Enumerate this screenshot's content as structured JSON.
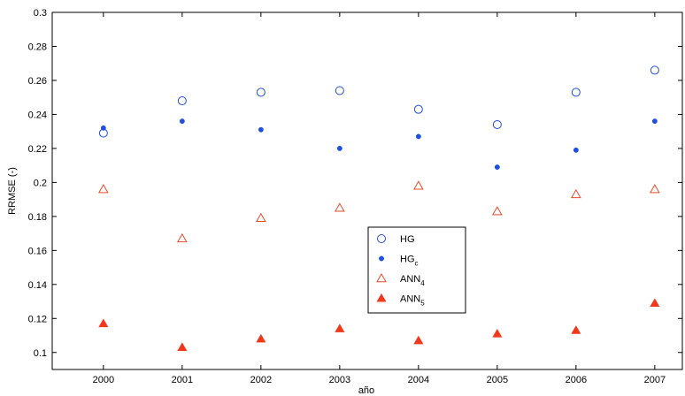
{
  "chart_data": {
    "type": "scatter",
    "xlabel": "año",
    "ylabel": "RRMSE (-)",
    "xlim": [
      1999.35,
      2007.35
    ],
    "ylim": [
      0.09,
      0.3
    ],
    "xticks": [
      "2000",
      "2001",
      "2002",
      "2003",
      "2004",
      "2005",
      "2006",
      "2007"
    ],
    "yticks": [
      "0.1",
      "0.12",
      "0.14",
      "0.16",
      "0.18",
      "0.2",
      "0.22",
      "0.24",
      "0.26",
      "0.28",
      "0.3"
    ],
    "x": [
      2000,
      2001,
      2002,
      2003,
      2004,
      2005,
      2006,
      2007
    ],
    "grid": false,
    "legend_position": "center-right",
    "series": [
      {
        "name": "HG",
        "sub": "",
        "marker": "open-circle",
        "color": "#1f4fe0",
        "values": [
          0.229,
          0.248,
          0.253,
          0.254,
          0.243,
          0.234,
          0.253,
          0.266
        ]
      },
      {
        "name": "HG",
        "sub": "c",
        "marker": "filled-dot",
        "color": "#1f4fe0",
        "values": [
          0.232,
          0.236,
          0.231,
          0.22,
          0.227,
          0.209,
          0.219,
          0.236
        ]
      },
      {
        "name": "ANN",
        "sub": "4",
        "marker": "open-triangle",
        "color": "#ea4a2a",
        "values": [
          0.196,
          0.167,
          0.179,
          0.185,
          0.198,
          0.183,
          0.193,
          0.196
        ]
      },
      {
        "name": "ANN",
        "sub": "5",
        "marker": "filled-triangle",
        "color": "#f2381a",
        "values": [
          0.117,
          0.103,
          0.108,
          0.114,
          0.107,
          0.111,
          0.113,
          0.129
        ]
      }
    ]
  }
}
